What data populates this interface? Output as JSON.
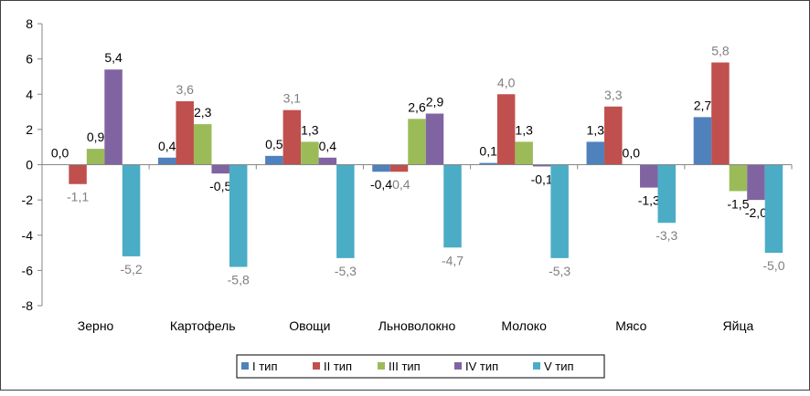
{
  "chart_data": {
    "type": "bar",
    "title": "",
    "xlabel": "",
    "ylabel": "",
    "ylim": [
      -8,
      8
    ],
    "yticks": [
      "8",
      "6",
      "4",
      "2",
      "0",
      "-2",
      "-4",
      "-6",
      "-8"
    ],
    "grid": false,
    "legend_position": "bottom",
    "categories": [
      "Зерно",
      "Картофель",
      "Овощи",
      "Льноволокно",
      "Молоко",
      "Мясо",
      "Яйца"
    ],
    "series": [
      {
        "name": "I тип",
        "color": "#4f81bd",
        "label_color": "#000000",
        "values": [
          0.0,
          0.4,
          0.5,
          -0.4,
          0.1,
          1.3,
          2.7
        ],
        "labels": [
          "0,0",
          "0,4",
          "0,5",
          "-0,4",
          "0,1",
          "1,3",
          "2,7"
        ]
      },
      {
        "name": "II тип",
        "color": "#c0504d",
        "label_color": "#7f7f7f",
        "values": [
          -1.1,
          3.6,
          3.1,
          -0.4,
          4.0,
          3.3,
          5.8
        ],
        "labels": [
          "-1,1",
          "3,6",
          "3,1",
          "-0,4",
          "4,0",
          "3,3",
          "5,8"
        ]
      },
      {
        "name": "III тип",
        "color": "#9bbb59",
        "label_color": "#000000",
        "values": [
          0.9,
          2.3,
          1.3,
          2.6,
          1.3,
          0.0,
          -1.5
        ],
        "labels": [
          "0,9",
          "2,3",
          "1,3",
          "2,6",
          "1,3",
          "0,0",
          "-1,5"
        ]
      },
      {
        "name": "IV тип",
        "color": "#8064a2",
        "label_color": "#000000",
        "values": [
          5.4,
          -0.5,
          0.4,
          2.9,
          -0.1,
          -1.3,
          -2.0
        ],
        "labels": [
          "5,4",
          "-0,5",
          "0,4",
          "2,9",
          "-0,1",
          "-1,3",
          "-2,0"
        ]
      },
      {
        "name": "V тип",
        "color": "#4bacc6",
        "label_color": "#7f7f7f",
        "values": [
          -5.2,
          -5.8,
          -5.3,
          -4.7,
          -5.3,
          -3.3,
          -5.0
        ],
        "labels": [
          "-5,2",
          "-5,8",
          "-5,3",
          "-4,7",
          "-5,3",
          "-3,3",
          "-5,0"
        ]
      }
    ]
  }
}
